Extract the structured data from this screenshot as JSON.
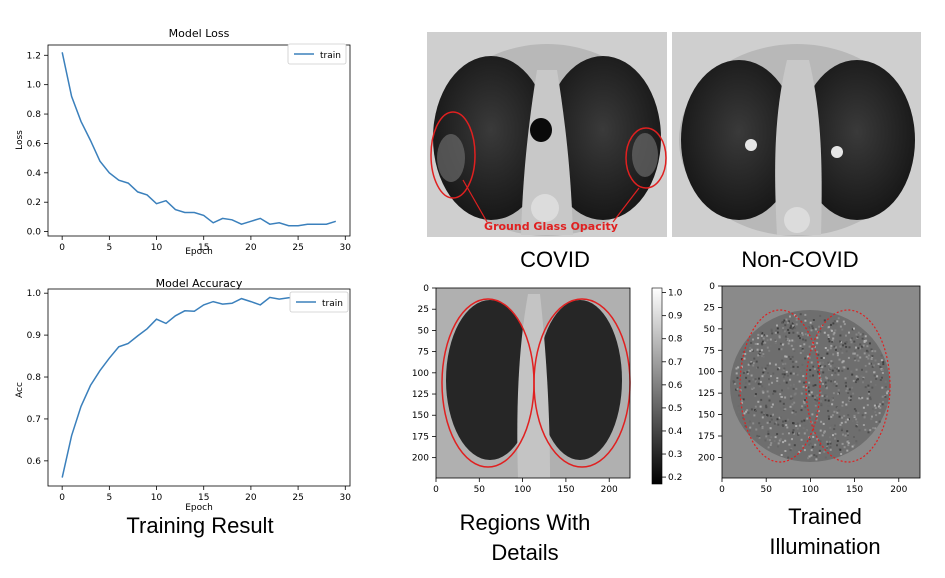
{
  "loss_chart": {
    "title": "Model Loss",
    "xlabel": "Epoch",
    "ylabel": "Loss",
    "legend": "train",
    "x_ticks": [
      "0",
      "5",
      "10",
      "15",
      "20",
      "25",
      "30"
    ],
    "y_ticks": [
      "0.0",
      "0.2",
      "0.4",
      "0.6",
      "0.8",
      "1.0",
      "1.2"
    ]
  },
  "acc_chart": {
    "title": "Model Accuracy",
    "xlabel": "Epoch",
    "ylabel": "Acc",
    "legend": "train",
    "x_ticks": [
      "0",
      "5",
      "10",
      "15",
      "20",
      "25",
      "30"
    ],
    "y_ticks": [
      "0.6",
      "0.7",
      "0.8",
      "0.9",
      "1.0"
    ]
  },
  "scans": {
    "covid_label": "COVID",
    "noncovid_label": "Non-COVID",
    "annotation": "Ground Glass Opacity"
  },
  "regions_plot": {
    "x_ticks": [
      "0",
      "50",
      "100",
      "150",
      "200"
    ],
    "y_ticks": [
      "0",
      "25",
      "50",
      "75",
      "100",
      "125",
      "150",
      "175",
      "200"
    ],
    "colorbar_ticks": [
      "1.0",
      "0.9",
      "0.8",
      "0.7",
      "0.6",
      "0.5",
      "0.4",
      "0.3",
      "0.2"
    ]
  },
  "illum_plot": {
    "x_ticks": [
      "0",
      "50",
      "100",
      "150",
      "200"
    ],
    "y_ticks": [
      "0",
      "25",
      "50",
      "75",
      "100",
      "125",
      "150",
      "175",
      "200"
    ]
  },
  "captions": {
    "training": "Training Result",
    "regions_line1": "Regions With",
    "regions_line2": "Details",
    "trained_line1": "Trained",
    "trained_line2": "Illumination"
  },
  "colors": {
    "series": "#3b80bc",
    "annotation": "#e02020",
    "axis": "#000000"
  },
  "chart_data": [
    {
      "type": "line",
      "title": "Model Loss",
      "xlabel": "Epoch",
      "ylabel": "Loss",
      "xlim": [
        -1.5,
        30.5
      ],
      "ylim": [
        -0.03,
        1.27
      ],
      "legend": "top-right",
      "series": [
        {
          "name": "train",
          "x": [
            0,
            1,
            2,
            3,
            4,
            5,
            6,
            7,
            8,
            9,
            10,
            11,
            12,
            13,
            14,
            15,
            16,
            17,
            18,
            19,
            20,
            21,
            22,
            23,
            24,
            25,
            26,
            27,
            28,
            29
          ],
          "values": [
            1.22,
            0.92,
            0.75,
            0.62,
            0.48,
            0.4,
            0.35,
            0.33,
            0.27,
            0.25,
            0.19,
            0.21,
            0.15,
            0.13,
            0.13,
            0.11,
            0.06,
            0.09,
            0.08,
            0.05,
            0.07,
            0.09,
            0.05,
            0.06,
            0.04,
            0.04,
            0.05,
            0.05,
            0.05,
            0.07
          ]
        }
      ]
    },
    {
      "type": "line",
      "title": "Model Accuracy",
      "xlabel": "Epoch",
      "ylabel": "Acc",
      "xlim": [
        -1.5,
        30.5
      ],
      "ylim": [
        0.54,
        1.01
      ],
      "legend": "top-right",
      "series": [
        {
          "name": "train",
          "x": [
            0,
            1,
            2,
            3,
            4,
            5,
            6,
            7,
            8,
            9,
            10,
            11,
            12,
            13,
            14,
            15,
            16,
            17,
            18,
            19,
            20,
            21,
            22,
            23,
            24,
            25
          ],
          "values": [
            0.56,
            0.66,
            0.73,
            0.78,
            0.815,
            0.845,
            0.872,
            0.88,
            0.898,
            0.915,
            0.938,
            0.928,
            0.946,
            0.958,
            0.957,
            0.972,
            0.98,
            0.974,
            0.976,
            0.987,
            0.98,
            0.972,
            0.99,
            0.986,
            0.989,
            0.99
          ]
        }
      ]
    }
  ]
}
